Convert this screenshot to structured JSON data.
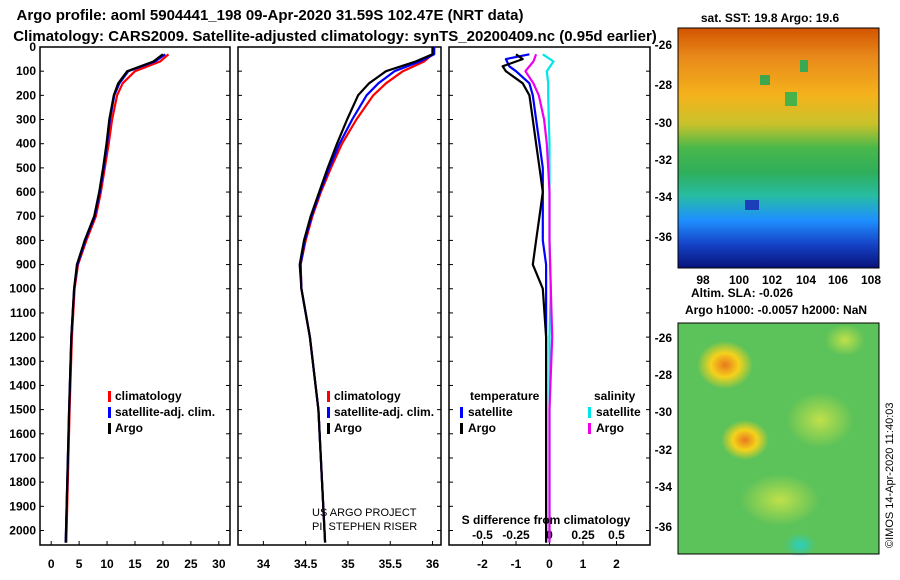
{
  "header": {
    "title_line1": "Argo profile: aoml 5904441_198 09-Apr-2020 31.59S 102.47E (NRT data)",
    "title_line2": "Climatology: CARS2009. Satellite-adjusted climatology: synTS_20200409.nc (0.95d earlier)"
  },
  "map_sst": {
    "title": "sat. SST: 19.8 Argo: 19.6",
    "y_ticks": [
      "-26",
      "-28",
      "-30",
      "-32",
      "-34",
      "-36"
    ],
    "x_ticks": [
      "98",
      "100",
      "102",
      "104",
      "106",
      "108"
    ]
  },
  "map_sla": {
    "title_line1": "Altim. SLA: -0.026",
    "title_line2": "Argo h1000: -0.0057 h2000: NaN",
    "y_ticks": [
      "-26",
      "-28",
      "-30",
      "-32",
      "-34",
      "-36"
    ]
  },
  "credits": {
    "project": "US ARGO PROJECT",
    "pi": "PI: STEPHEN RISER",
    "imos": "©IMOS 14-Apr-2020 11:40:03"
  },
  "colors": {
    "climatology": "#ff0000",
    "satellite": "#0000ff",
    "argo": "#000000",
    "salinity_satellite": "#00e5e5",
    "salinity_argo": "#ee00ee"
  },
  "chart_data": [
    {
      "type": "line",
      "title": "Temperature",
      "y_axis": "depth",
      "ylim": [
        2060,
        0
      ],
      "xlim": [
        -2,
        32
      ],
      "x_ticks": [
        "0",
        "5",
        "10",
        "15",
        "20",
        "25",
        "30"
      ],
      "y_ticks": [
        "0",
        "100",
        "200",
        "300",
        "400",
        "500",
        "600",
        "700",
        "800",
        "900",
        "1000",
        "1100",
        "1200",
        "1300",
        "1400",
        "1500",
        "1600",
        "1700",
        "1800",
        "1900",
        "2000"
      ],
      "legend": [
        {
          "label": "climatology"
        },
        {
          "label": "satellite-adj. clim."
        },
        {
          "label": "Argo"
        }
      ],
      "series": [
        {
          "name": "climatology",
          "depth": [
            30,
            60,
            100,
            150,
            200,
            300,
            400,
            500,
            600,
            700,
            800,
            900,
            1000,
            1200,
            1500,
            2050
          ],
          "values": [
            21,
            19.5,
            15,
            12.8,
            11.8,
            10.9,
            10.3,
            9.6,
            8.9,
            8,
            6.3,
            4.8,
            4.2,
            3.7,
            3.3,
            2.7
          ]
        },
        {
          "name": "satellite-adj. clim.",
          "depth": [
            30,
            60,
            100,
            150,
            200,
            300,
            400,
            500,
            600,
            700,
            800,
            900,
            1000,
            1200,
            1500,
            2050
          ],
          "values": [
            20.4,
            18.6,
            13.8,
            12.2,
            11.3,
            10.5,
            10,
            9.4,
            8.7,
            7.8,
            6.1,
            4.7,
            4.1,
            3.6,
            3.2,
            2.6
          ]
        },
        {
          "name": "Argo",
          "depth": [
            30,
            60,
            100,
            150,
            200,
            300,
            400,
            500,
            600,
            700,
            800,
            900,
            1000,
            1200,
            1500,
            2050
          ],
          "values": [
            20,
            18.3,
            13.6,
            12,
            11.2,
            10.4,
            9.9,
            9.3,
            8.6,
            7.7,
            6,
            4.6,
            4.1,
            3.6,
            3.2,
            2.6
          ]
        }
      ]
    },
    {
      "type": "line",
      "title": "Salinity",
      "y_axis": "depth",
      "ylim": [
        2060,
        0
      ],
      "xlim": [
        33.7,
        36.1
      ],
      "x_ticks": [
        "34",
        "34.5",
        "35",
        "35.5",
        "36"
      ],
      "legend": [
        {
          "label": "climatology"
        },
        {
          "label": "satellite-adj. clim."
        },
        {
          "label": "Argo"
        }
      ],
      "series": [
        {
          "name": "climatology",
          "depth": [
            0,
            30,
            60,
            100,
            150,
            200,
            300,
            400,
            500,
            600,
            700,
            800,
            900,
            1000,
            1200,
            1500,
            2050
          ],
          "values": [
            36,
            36,
            35.9,
            35.65,
            35.45,
            35.3,
            35.1,
            34.93,
            34.8,
            34.68,
            34.58,
            34.5,
            34.44,
            34.45,
            34.55,
            34.65,
            34.73
          ]
        },
        {
          "name": "satellite-adj. clim.",
          "depth": [
            0,
            30,
            60,
            100,
            150,
            200,
            300,
            400,
            500,
            600,
            700,
            800,
            900,
            1000,
            1200,
            1500,
            2050
          ],
          "values": [
            36.02,
            36.02,
            35.85,
            35.55,
            35.36,
            35.22,
            35.05,
            34.9,
            34.78,
            34.67,
            34.57,
            34.49,
            34.44,
            34.45,
            34.55,
            34.65,
            34.73
          ]
        },
        {
          "name": "Argo",
          "depth": [
            0,
            30,
            60,
            100,
            150,
            200,
            300,
            400,
            500,
            600,
            700,
            800,
            900,
            1000,
            1200,
            1500,
            2050
          ],
          "values": [
            36,
            36,
            35.8,
            35.45,
            35.25,
            35.12,
            34.99,
            34.87,
            34.76,
            34.66,
            34.56,
            34.48,
            34.43,
            34.45,
            34.55,
            34.65,
            34.73
          ]
        }
      ]
    },
    {
      "type": "line",
      "title": "S difference from climatology",
      "y_axis": "depth",
      "ylim": [
        2060,
        0
      ],
      "xlim": [
        -3,
        3
      ],
      "x_ticks": [
        "-2",
        "-1",
        "0",
        "1",
        "2"
      ],
      "top_ticks": [
        "-0.5",
        "-0.25",
        "0",
        "0.25",
        "0.5"
      ],
      "legend": [
        {
          "group": "temperature",
          "label": "satellite"
        },
        {
          "group": "temperature",
          "label": "Argo"
        },
        {
          "group": "salinity",
          "label": "satellite"
        },
        {
          "group": "salinity",
          "label": "Argo"
        }
      ],
      "series": [
        {
          "name": "temperature satellite",
          "depth": [
            30,
            50,
            80,
            100,
            150,
            200,
            300,
            400,
            500,
            600,
            700,
            800,
            900,
            1000,
            1200,
            1500,
            2050
          ],
          "values": [
            -0.6,
            -1.3,
            -1.2,
            -1,
            -0.6,
            -0.5,
            -0.4,
            -0.3,
            -0.2,
            -0.2,
            -0.2,
            -0.2,
            -0.1,
            -0.1,
            -0.1,
            -0.1,
            -0.1
          ]
        },
        {
          "name": "temperature Argo",
          "depth": [
            30,
            50,
            80,
            100,
            150,
            200,
            300,
            400,
            500,
            600,
            700,
            800,
            900,
            1000,
            1200,
            1500,
            2050
          ],
          "values": [
            -1,
            -0.8,
            -1.4,
            -1.3,
            -0.8,
            -0.6,
            -0.5,
            -0.4,
            -0.3,
            -0.2,
            -0.3,
            -0.4,
            -0.5,
            -0.2,
            -0.1,
            -0.1,
            -0.1
          ]
        },
        {
          "name": "salinity satellite",
          "depth": [
            30,
            60,
            100,
            150,
            200,
            300,
            400,
            500,
            600,
            800,
            1000,
            1200,
            1500,
            2050
          ],
          "values": [
            -0.05,
            0.03,
            -0.02,
            -0.01,
            -0.01,
            -0.005,
            0,
            0,
            0,
            0,
            0.01,
            0,
            0,
            0
          ]
        },
        {
          "name": "salinity Argo",
          "depth": [
            30,
            60,
            100,
            150,
            200,
            300,
            400,
            500,
            600,
            800,
            1000,
            1200,
            1500,
            2050
          ],
          "values": [
            -0.1,
            -0.12,
            -0.18,
            -0.12,
            -0.08,
            -0.04,
            -0.02,
            -0.01,
            0,
            0,
            0.01,
            0.02,
            0,
            0
          ]
        }
      ]
    }
  ]
}
